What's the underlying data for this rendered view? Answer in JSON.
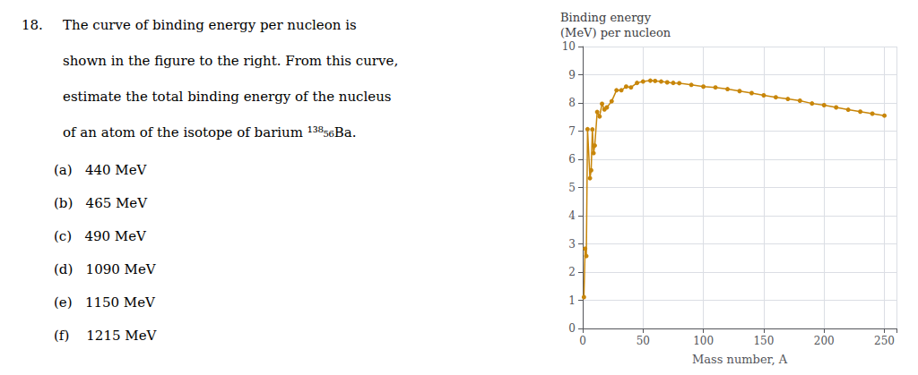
{
  "chart_data": {
    "type": "line",
    "title": "Binding energy\n(MeV) per nucleon",
    "x_label": "Mass number, A",
    "annotations": [
      "18.",
      "The curve of binding energy per nucleon is",
      "shown in the figure to the right. From this curve,",
      "estimate the total binding energy of the nucleus",
      "of an atom of the isotope of barium ¹³⁸₅₆Ba.",
      "(a)   440 MeV",
      "(b)   465 MeV",
      "(c)   490 MeV",
      "(d)   1090 MeV",
      "(e)   1150 MeV",
      "(f)    1215 MeV"
    ],
    "x": [
      1,
      2,
      3,
      4,
      6,
      7,
      8,
      9,
      10,
      12,
      14,
      16,
      18,
      20,
      24,
      28,
      32,
      36,
      40,
      45,
      50,
      56,
      60,
      65,
      70,
      75,
      80,
      90,
      100,
      110,
      120,
      130,
      140,
      150,
      160,
      170,
      180,
      190,
      200,
      210,
      220,
      230,
      240,
      250
    ],
    "values": [
      1.11,
      2.83,
      2.57,
      7.07,
      5.33,
      5.61,
      7.06,
      6.22,
      6.49,
      7.68,
      7.52,
      7.97,
      7.77,
      7.84,
      8.06,
      8.45,
      8.45,
      8.58,
      8.55,
      8.71,
      8.76,
      8.79,
      8.78,
      8.76,
      8.73,
      8.71,
      8.7,
      8.64,
      8.58,
      8.55,
      8.49,
      8.42,
      8.35,
      8.27,
      8.2,
      8.14,
      8.08,
      7.98,
      7.92,
      7.84,
      7.76,
      7.69,
      7.62,
      7.55
    ],
    "color": "#C8860A",
    "marker": "circle",
    "xlim": [
      0,
      260
    ],
    "ylim": [
      0,
      10
    ],
    "xticks": [
      0,
      50,
      100,
      150,
      200,
      250
    ],
    "yticks": [
      0,
      1,
      2,
      3,
      4,
      5,
      6,
      7,
      8,
      9,
      10
    ],
    "grid": true
  }
}
